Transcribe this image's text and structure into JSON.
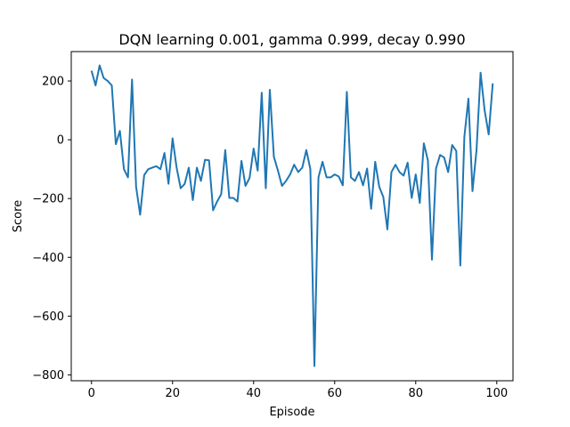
{
  "chart_data": {
    "type": "line",
    "title": "DQN learning 0.001, gamma 0.999, decay 0.990",
    "xlabel": "Episode",
    "ylabel": "Score",
    "xlim": [
      -5,
      104
    ],
    "ylim": [
      -820,
      300
    ],
    "xticks": [
      0,
      20,
      40,
      60,
      80,
      100
    ],
    "yticks": [
      -800,
      -600,
      -400,
      -200,
      0,
      200
    ],
    "grid": false,
    "colors": {
      "line": "#1f77b4"
    },
    "series": [
      {
        "x": [
          0,
          1,
          2,
          3,
          4,
          5,
          6,
          7,
          8,
          9,
          10,
          11,
          12,
          13,
          14,
          15,
          16,
          17,
          18,
          19,
          20,
          21,
          22,
          23,
          24,
          25,
          26,
          27,
          28,
          29,
          30,
          31,
          32,
          33,
          34,
          35,
          36,
          37,
          38,
          39,
          40,
          41,
          42,
          43,
          44,
          45,
          46,
          47,
          48,
          49,
          50,
          51,
          52,
          53,
          54,
          55,
          56,
          57,
          58,
          59,
          60,
          61,
          62,
          63,
          64,
          65,
          66,
          67,
          68,
          69,
          70,
          71,
          72,
          73,
          74,
          75,
          76,
          77,
          78,
          79,
          80,
          81,
          82,
          83,
          84,
          85,
          86,
          87,
          88,
          89,
          90,
          91,
          92,
          93,
          94,
          95,
          96,
          97,
          98,
          99
        ],
        "y": [
          235,
          185,
          253,
          210,
          200,
          185,
          -15,
          30,
          -100,
          -128,
          205,
          -160,
          -255,
          -120,
          -100,
          -95,
          -90,
          -100,
          -45,
          -150,
          5,
          -95,
          -165,
          -150,
          -95,
          -205,
          -95,
          -140,
          -68,
          -70,
          -240,
          -210,
          -185,
          -35,
          -198,
          -198,
          -210,
          -72,
          -157,
          -130,
          -30,
          -105,
          160,
          -165,
          170,
          -58,
          -105,
          -157,
          -140,
          -118,
          -85,
          -110,
          -95,
          -35,
          -100,
          -770,
          -128,
          -75,
          -128,
          -128,
          -118,
          -125,
          -155,
          163,
          -128,
          -140,
          -110,
          -155,
          -98,
          -235,
          -75,
          -160,
          -195,
          -305,
          -110,
          -85,
          -110,
          -122,
          -78,
          -198,
          -118,
          -215,
          -12,
          -70,
          -408,
          -98,
          -52,
          -60,
          -110,
          -18,
          -38,
          -428,
          10,
          140,
          -175,
          -35,
          228,
          100,
          18,
          192
        ]
      }
    ]
  }
}
